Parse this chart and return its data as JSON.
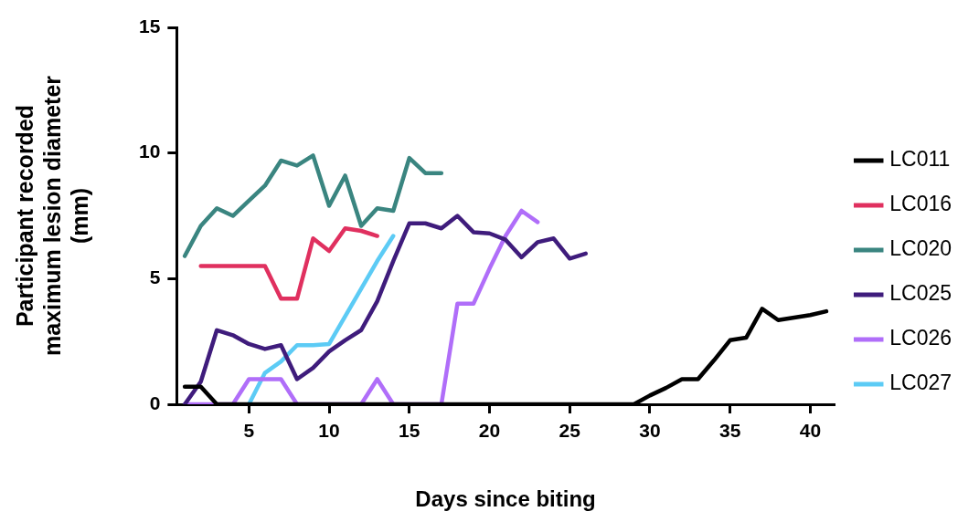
{
  "chart_data": {
    "type": "line",
    "xlabel": "Days since biting",
    "ylabel": "Participant recorded maximum lesion diameter (mm)",
    "xlim": [
      0.5,
      41.5
    ],
    "xticks": [
      5,
      10,
      15,
      20,
      25,
      30,
      35,
      40
    ],
    "ylim": [
      0,
      15
    ],
    "yticks": [
      0,
      5,
      10,
      15
    ],
    "grid": false,
    "legend": "right",
    "marker": "none",
    "line_style": "solid",
    "series": [
      {
        "name": "LC011",
        "color": "#000000",
        "x": [
          1,
          2,
          3,
          4,
          5,
          6,
          7,
          8,
          9,
          10,
          11,
          12,
          13,
          14,
          15,
          16,
          17,
          18,
          19,
          20,
          21,
          22,
          23,
          24,
          25,
          26,
          27,
          28,
          29,
          30,
          31,
          32,
          33,
          34,
          35,
          36,
          37,
          38,
          39,
          40,
          41
        ],
        "values": [
          0.7,
          0.7,
          0,
          0,
          0,
          0,
          0,
          0,
          0,
          0,
          0,
          0,
          0,
          0,
          0,
          0,
          0,
          0,
          0,
          0,
          0,
          0,
          0,
          0,
          0,
          0,
          0,
          0,
          0,
          0.35,
          0.65,
          1.0,
          1.0,
          1.75,
          2.55,
          2.65,
          3.8,
          3.35,
          3.45,
          3.55,
          3.7
        ]
      },
      {
        "name": "LC016",
        "color": "#e0305f",
        "x": [
          2,
          3,
          4,
          5,
          6,
          7,
          8,
          9,
          10,
          11,
          12,
          13
        ],
        "values": [
          5.5,
          5.5,
          5.5,
          5.5,
          5.5,
          4.2,
          4.2,
          6.6,
          6.1,
          7.0,
          6.9,
          6.7
        ]
      },
      {
        "name": "LC020",
        "color": "#3a8580",
        "x": [
          1,
          2,
          3,
          4,
          5,
          6,
          7,
          8,
          9,
          10,
          11,
          12,
          13,
          14,
          15,
          16,
          17
        ],
        "values": [
          5.9,
          7.1,
          7.8,
          7.5,
          8.1,
          8.7,
          9.7,
          9.5,
          9.9,
          7.9,
          9.1,
          7.1,
          7.8,
          7.7,
          9.8,
          9.2,
          9.2
        ]
      },
      {
        "name": "LC025",
        "color": "#3f1c7c",
        "x": [
          1,
          2,
          3,
          4,
          5,
          6,
          7,
          8,
          9,
          10,
          11,
          12,
          13,
          14,
          15,
          16,
          17,
          18,
          19,
          20,
          21,
          22,
          23,
          24,
          25,
          26
        ],
        "values": [
          0,
          0.9,
          2.95,
          2.75,
          2.4,
          2.2,
          2.35,
          1.0,
          1.45,
          2.1,
          2.55,
          2.95,
          4.1,
          5.7,
          7.2,
          7.2,
          7.0,
          7.5,
          6.85,
          6.8,
          6.55,
          5.85,
          6.45,
          6.6,
          5.8,
          6.0
        ]
      },
      {
        "name": "LC026",
        "color": "#b06ef9",
        "x": [
          1,
          2,
          3,
          4,
          5,
          6,
          7,
          8,
          9,
          10,
          11,
          12,
          13,
          14,
          15,
          16,
          17,
          18,
          19,
          20,
          21,
          22,
          23
        ],
        "values": [
          0,
          0,
          0,
          0,
          1,
          1,
          1,
          0,
          0,
          0,
          0,
          0,
          1,
          0,
          0,
          0,
          0,
          4,
          4,
          5.4,
          6.7,
          7.7,
          7.25
        ]
      },
      {
        "name": "LC027",
        "color": "#5ccbf5",
        "x": [
          5,
          6,
          7,
          8,
          9,
          10,
          11,
          12,
          13,
          14
        ],
        "values": [
          0,
          1.25,
          1.7,
          2.35,
          2.35,
          2.4,
          3.5,
          4.6,
          5.7,
          6.7
        ]
      }
    ]
  }
}
